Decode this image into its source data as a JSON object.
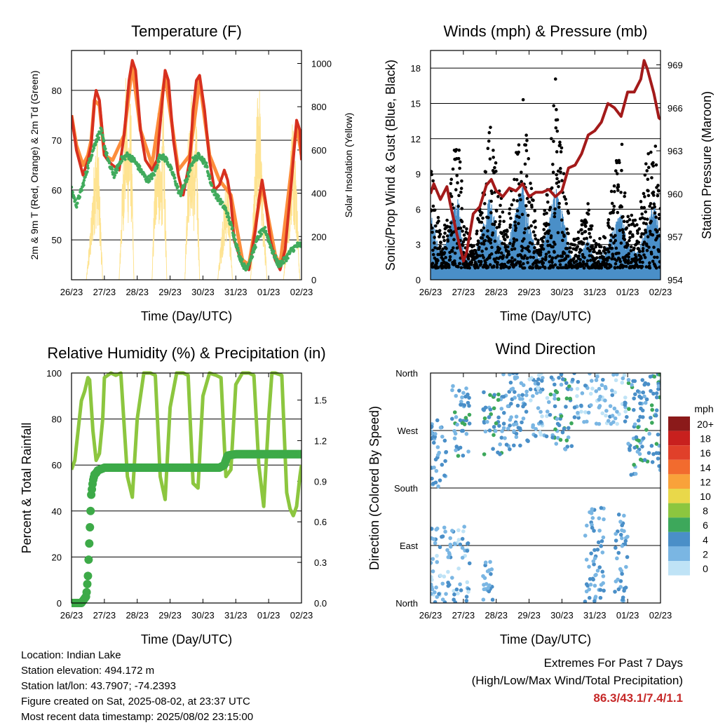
{
  "chart_data": [
    {
      "type": "line",
      "title": "Temperature (F)",
      "xlabel": "Time (Day/UTC)",
      "ylabel": "2m & 9m T (Red, Orange) & 2m Td (Green)",
      "ylabel_right": "Solar Insolation (Yellow)",
      "x_ticks": [
        "26/23",
        "27/23",
        "28/23",
        "29/23",
        "30/23",
        "31/23",
        "01/23",
        "02/23"
      ],
      "y_ticks": [
        "50",
        "60",
        "70",
        "80"
      ],
      "y2_ticks": [
        "0",
        "200",
        "400",
        "600",
        "800",
        "1000"
      ],
      "ylim": [
        42,
        88
      ],
      "y2lim": [
        0,
        1060
      ],
      "x_range_days": [
        0,
        7
      ],
      "series": [
        {
          "name": "2m T",
          "color": "#d7301f",
          "x": [
            0,
            0.15,
            0.35,
            0.5,
            0.6,
            0.7,
            0.75,
            0.85,
            1.0,
            1.1,
            1.25,
            1.45,
            1.6,
            1.75,
            1.85,
            1.95,
            2.1,
            2.25,
            2.45,
            2.6,
            2.75,
            2.85,
            2.95,
            3.1,
            3.25,
            3.4,
            3.6,
            3.7,
            3.8,
            3.9,
            4.05,
            4.2,
            4.35,
            4.5,
            4.65,
            4.75,
            4.85,
            4.95,
            5.2,
            5.4,
            5.6,
            5.7,
            5.8,
            5.9,
            6.05,
            6.2,
            6.35,
            6.5,
            6.7,
            6.85,
            6.95,
            7.0
          ],
          "values": [
            75,
            68,
            63,
            66,
            69,
            78,
            80,
            78,
            67,
            66,
            65,
            64,
            71,
            82,
            86,
            84,
            72,
            66,
            64,
            66,
            77,
            84,
            82,
            70,
            63,
            59,
            66,
            76,
            82,
            83,
            76,
            66,
            60,
            61,
            64,
            62,
            58,
            50,
            45,
            44,
            52,
            58,
            62,
            58,
            50,
            46,
            44,
            48,
            62,
            74,
            72,
            66
          ]
        },
        {
          "name": "9m T",
          "color": "#fd8d3c",
          "x": [
            0,
            0.15,
            0.35,
            0.5,
            0.6,
            0.7,
            0.85,
            1.0,
            1.25,
            1.6,
            1.85,
            2.1,
            2.45,
            2.85,
            3.25,
            3.6,
            3.9,
            4.2,
            4.5,
            4.85,
            5.2,
            5.4,
            5.8,
            6.2,
            6.35,
            6.85,
            7.0
          ],
          "values": [
            75,
            69,
            65,
            67,
            70,
            78,
            77,
            67,
            66,
            71,
            85,
            72,
            65,
            83,
            64,
            67,
            82,
            67,
            62,
            59,
            46,
            45,
            61,
            47,
            45,
            73,
            67
          ]
        },
        {
          "name": "2m Td",
          "color": "#41ab5d",
          "x": [
            0,
            0.15,
            0.35,
            0.55,
            0.75,
            0.9,
            1.0,
            1.15,
            1.3,
            1.5,
            1.7,
            1.9,
            2.1,
            2.3,
            2.5,
            2.7,
            2.9,
            3.1,
            3.3,
            3.5,
            3.7,
            3.9,
            4.1,
            4.3,
            4.5,
            4.7,
            4.9,
            5.1,
            5.3,
            5.5,
            5.7,
            5.9,
            6.1,
            6.3,
            6.5,
            6.7,
            6.9,
            7.0
          ],
          "values": [
            60,
            57,
            61,
            66,
            70,
            72,
            69,
            65,
            63,
            66,
            67,
            66,
            64,
            62,
            63,
            67,
            66,
            63,
            59,
            62,
            66,
            67,
            65,
            60,
            58,
            56,
            52,
            47,
            44,
            47,
            51,
            52,
            48,
            45,
            46,
            48,
            49,
            49
          ]
        },
        {
          "name": "Solar Insolation",
          "color": "#fee391",
          "axis": "right",
          "x": [
            0.45,
            0.6,
            0.7,
            0.8,
            0.95,
            1.45,
            1.55,
            1.65,
            1.72,
            1.8,
            1.9,
            2.45,
            2.55,
            2.62,
            2.7,
            2.8,
            2.9,
            3.45,
            3.55,
            3.65,
            3.72,
            3.8,
            3.9,
            4.45,
            4.6,
            4.75,
            4.9,
            5.45,
            5.6,
            5.7,
            5.8,
            5.95,
            6.45,
            6.6,
            6.72,
            6.82,
            6.95
          ],
          "values": [
            0,
            300,
            600,
            700,
            0,
            0,
            500,
            950,
            700,
            900,
            0,
            0,
            600,
            900,
            500,
            850,
            0,
            0,
            700,
            900,
            600,
            800,
            0,
            0,
            300,
            550,
            0,
            0,
            600,
            1050,
            500,
            0,
            0,
            400,
            800,
            600,
            0
          ]
        }
      ]
    },
    {
      "type": "scatter",
      "title": "Winds (mph) & Pressure (mb)",
      "xlabel": "Time (Day/UTC)",
      "ylabel": "Sonic/Prop Wind & Gust (Blue, Black)",
      "ylabel_right": "Station Pressure (Maroon)",
      "x_ticks": [
        "26/23",
        "27/23",
        "28/23",
        "29/23",
        "30/23",
        "31/23",
        "01/23",
        "02/23"
      ],
      "y_ticks": [
        "0",
        "3",
        "6",
        "9",
        "12",
        "15",
        "18"
      ],
      "y2_ticks": [
        "954",
        "957",
        "960",
        "963",
        "966",
        "969"
      ],
      "ylim": [
        0,
        19.5
      ],
      "y2lim": [
        954,
        970
      ],
      "x_range_days": [
        0,
        7
      ],
      "gust_envelope": {
        "x": [
          0,
          0.3,
          0.5,
          0.7,
          0.85,
          1.0,
          1.3,
          1.6,
          1.8,
          2.0,
          2.3,
          2.6,
          2.8,
          3.0,
          3.3,
          3.6,
          3.8,
          4.0,
          4.3,
          4.6,
          4.8,
          5.0,
          5.3,
          5.6,
          5.8,
          6.0,
          6.3,
          6.6,
          6.8,
          7.0
        ],
        "values": [
          10,
          4,
          5,
          11,
          15,
          5,
          3,
          8,
          14,
          10,
          5,
          11,
          16,
          10,
          3,
          9,
          18,
          11,
          3,
          5,
          7,
          3,
          4,
          10,
          13,
          6,
          5,
          11,
          13,
          6
        ]
      },
      "wind_envelope": {
        "x": [
          0,
          0.3,
          0.5,
          0.7,
          0.85,
          1.0,
          1.3,
          1.6,
          1.8,
          2.0,
          2.3,
          2.6,
          2.8,
          3.0,
          3.3,
          3.6,
          3.8,
          4.0,
          4.3,
          4.6,
          4.8,
          5.0,
          5.3,
          5.6,
          5.8,
          6.0,
          6.3,
          6.6,
          6.8,
          7.0
        ],
        "values": [
          5,
          2,
          3,
          5,
          6,
          2,
          1.5,
          4,
          6,
          4,
          2,
          5,
          7,
          4,
          1.5,
          4,
          7,
          5,
          1.5,
          2,
          3,
          1.5,
          2,
          4,
          5,
          2.5,
          2,
          4,
          6,
          3
        ]
      },
      "series": [
        {
          "name": "Station Pressure",
          "color": "#a31a1a",
          "axis": "right",
          "x": [
            0,
            0.1,
            0.3,
            0.5,
            0.6,
            0.8,
            1.0,
            1.1,
            1.3,
            1.5,
            1.7,
            1.85,
            2.0,
            2.2,
            2.4,
            2.6,
            2.8,
            3.0,
            3.2,
            3.4,
            3.6,
            3.8,
            4.0,
            4.2,
            4.4,
            4.6,
            4.8,
            5.0,
            5.2,
            5.4,
            5.6,
            5.8,
            6.0,
            6.2,
            6.4,
            6.5,
            6.6,
            6.8,
            6.95,
            7.0
          ],
          "values": [
            960,
            960.7,
            959.6,
            960.5,
            959.3,
            957.2,
            955.3,
            955.9,
            958.6,
            959.1,
            960.6,
            961,
            960.2,
            959.8,
            960.4,
            960.2,
            960.7,
            959.8,
            960.1,
            960.1,
            960.3,
            959.8,
            960.2,
            961.8,
            962,
            962.8,
            964.1,
            964.4,
            965,
            966.3,
            966,
            965.4,
            967.1,
            967.1,
            968,
            969.3,
            968.7,
            967,
            965.3,
            965.2
          ]
        }
      ]
    },
    {
      "type": "line",
      "title": "Relative Humidity (%) & Precipitation (in)",
      "xlabel": "Time (Day/UTC)",
      "ylabel": "Percent & Total Rainfall",
      "x_ticks": [
        "26/23",
        "27/23",
        "28/23",
        "29/23",
        "30/23",
        "31/23",
        "01/23",
        "02/23"
      ],
      "y_ticks": [
        "0",
        "20",
        "40",
        "60",
        "80",
        "100"
      ],
      "y2_ticks": [
        "0.0",
        "0.3",
        "0.6",
        "0.9",
        "1.2",
        "1.5"
      ],
      "ylim": [
        0,
        100
      ],
      "y2lim": [
        0,
        1.7
      ],
      "x_range_days": [
        0,
        7
      ],
      "series": [
        {
          "name": "Relative Humidity",
          "color": "#8cc63f",
          "x": [
            0,
            0.1,
            0.2,
            0.3,
            0.4,
            0.5,
            0.55,
            0.65,
            0.75,
            0.85,
            0.95,
            1.0,
            1.2,
            1.35,
            1.5,
            1.7,
            1.85,
            2.0,
            2.2,
            2.4,
            2.55,
            2.7,
            2.85,
            3.0,
            3.2,
            3.4,
            3.55,
            3.7,
            3.85,
            4.0,
            4.2,
            4.4,
            4.55,
            4.7,
            4.85,
            5.0,
            5.2,
            5.4,
            5.55,
            5.7,
            5.85,
            6.0,
            6.1,
            6.2,
            6.4,
            6.55,
            6.65,
            6.75,
            6.85,
            6.95,
            7.0
          ],
          "values": [
            58,
            62,
            75,
            88,
            92,
            98,
            97,
            75,
            62,
            65,
            80,
            98,
            100,
            99,
            100,
            55,
            46,
            80,
            100,
            100,
            99,
            55,
            45,
            85,
            100,
            100,
            99,
            52,
            50,
            90,
            100,
            99,
            98,
            55,
            58,
            95,
            100,
            100,
            99,
            60,
            42,
            80,
            100,
            100,
            99,
            48,
            41,
            38,
            42,
            55,
            60
          ]
        },
        {
          "name": "Total Rainfall",
          "color": "#3daa48",
          "axis": "right",
          "x": [
            0,
            0.3,
            0.45,
            0.5,
            0.55,
            0.6,
            0.65,
            0.7,
            0.75,
            0.8,
            0.9,
            1.0,
            1.5,
            2.0,
            3.0,
            4.0,
            4.5,
            4.65,
            4.75,
            5.0,
            6.0,
            7.0
          ],
          "values": [
            0,
            0,
            0.05,
            0.2,
            0.5,
            0.8,
            0.9,
            0.95,
            0.96,
            0.98,
            0.99,
            1.0,
            1.0,
            1.0,
            1.0,
            1.0,
            1.0,
            1.02,
            1.09,
            1.1,
            1.1,
            1.1
          ]
        }
      ]
    },
    {
      "type": "scatter",
      "title": "Wind Direction",
      "xlabel": "Time (Day/UTC)",
      "ylabel": "Direction (Colored By Speed)",
      "x_ticks": [
        "26/23",
        "27/23",
        "28/23",
        "29/23",
        "30/23",
        "31/23",
        "01/23",
        "02/23"
      ],
      "y_ticks": [
        "North",
        "East",
        "South",
        "West",
        "North"
      ],
      "ylim": [
        0,
        360
      ],
      "x_range_days": [
        0,
        7
      ],
      "legend": {
        "title": "mph",
        "position": "right",
        "labels": [
          "20+",
          "18",
          "16",
          "14",
          "12",
          "10",
          "8",
          "6",
          "4",
          "2",
          "0"
        ],
        "colors": [
          "#8b1a1a",
          "#c8201e",
          "#e0402a",
          "#f26b2e",
          "#f9a23a",
          "#e9d84a",
          "#8cc63f",
          "#3da85b",
          "#4a8fc8",
          "#7ab6e3",
          "#bfe3f6"
        ]
      },
      "direction_clusters": [
        {
          "x": [
            0,
            0.5
          ],
          "dir": [
            180,
            290
          ],
          "speed": 3
        },
        {
          "x": [
            0.6,
            1.2
          ],
          "dir": [
            230,
            340
          ],
          "speed": 4
        },
        {
          "x": [
            1.6,
            2.2
          ],
          "dir": [
            230,
            330
          ],
          "speed": 4
        },
        {
          "x": [
            2.2,
            3.0
          ],
          "dir": [
            240,
            360
          ],
          "speed": 3
        },
        {
          "x": [
            3.0,
            3.6
          ],
          "dir": [
            260,
            360
          ],
          "speed": 2
        },
        {
          "x": [
            3.6,
            4.3
          ],
          "dir": [
            240,
            360
          ],
          "speed": 4
        },
        {
          "x": [
            4.3,
            6.0
          ],
          "dir": [
            280,
            360
          ],
          "speed": 2
        },
        {
          "x": [
            6.0,
            7.0
          ],
          "dir": [
            200,
            360
          ],
          "speed": 4
        },
        {
          "x": [
            0,
            1.2
          ],
          "dir": [
            0,
            120
          ],
          "speed": 2
        },
        {
          "x": [
            4.7,
            5.3
          ],
          "dir": [
            0,
            150
          ],
          "speed": 3
        },
        {
          "x": [
            5.6,
            6.0
          ],
          "dir": [
            0,
            140
          ],
          "speed": 3
        },
        {
          "x": [
            1.6,
            2.0
          ],
          "dir": [
            0,
            70
          ],
          "speed": 3
        }
      ]
    }
  ],
  "station_info": {
    "location": "Location: Indian Lake",
    "elevation": "Station elevation: 494.172 m",
    "latlon": "Station lat/lon: 43.7907; -74.2393",
    "created": "Figure created on Sat, 2025-08-02, at 23:37 UTC",
    "recent": "Most recent data timestamp: 2025/08/02 23:15:00"
  },
  "extremes": {
    "title": "Extremes For Past 7 Days",
    "subtitle": "(High/Low/Max Wind/Total Precipitation)",
    "values": "86.3/43.1/7.4/1.1"
  }
}
